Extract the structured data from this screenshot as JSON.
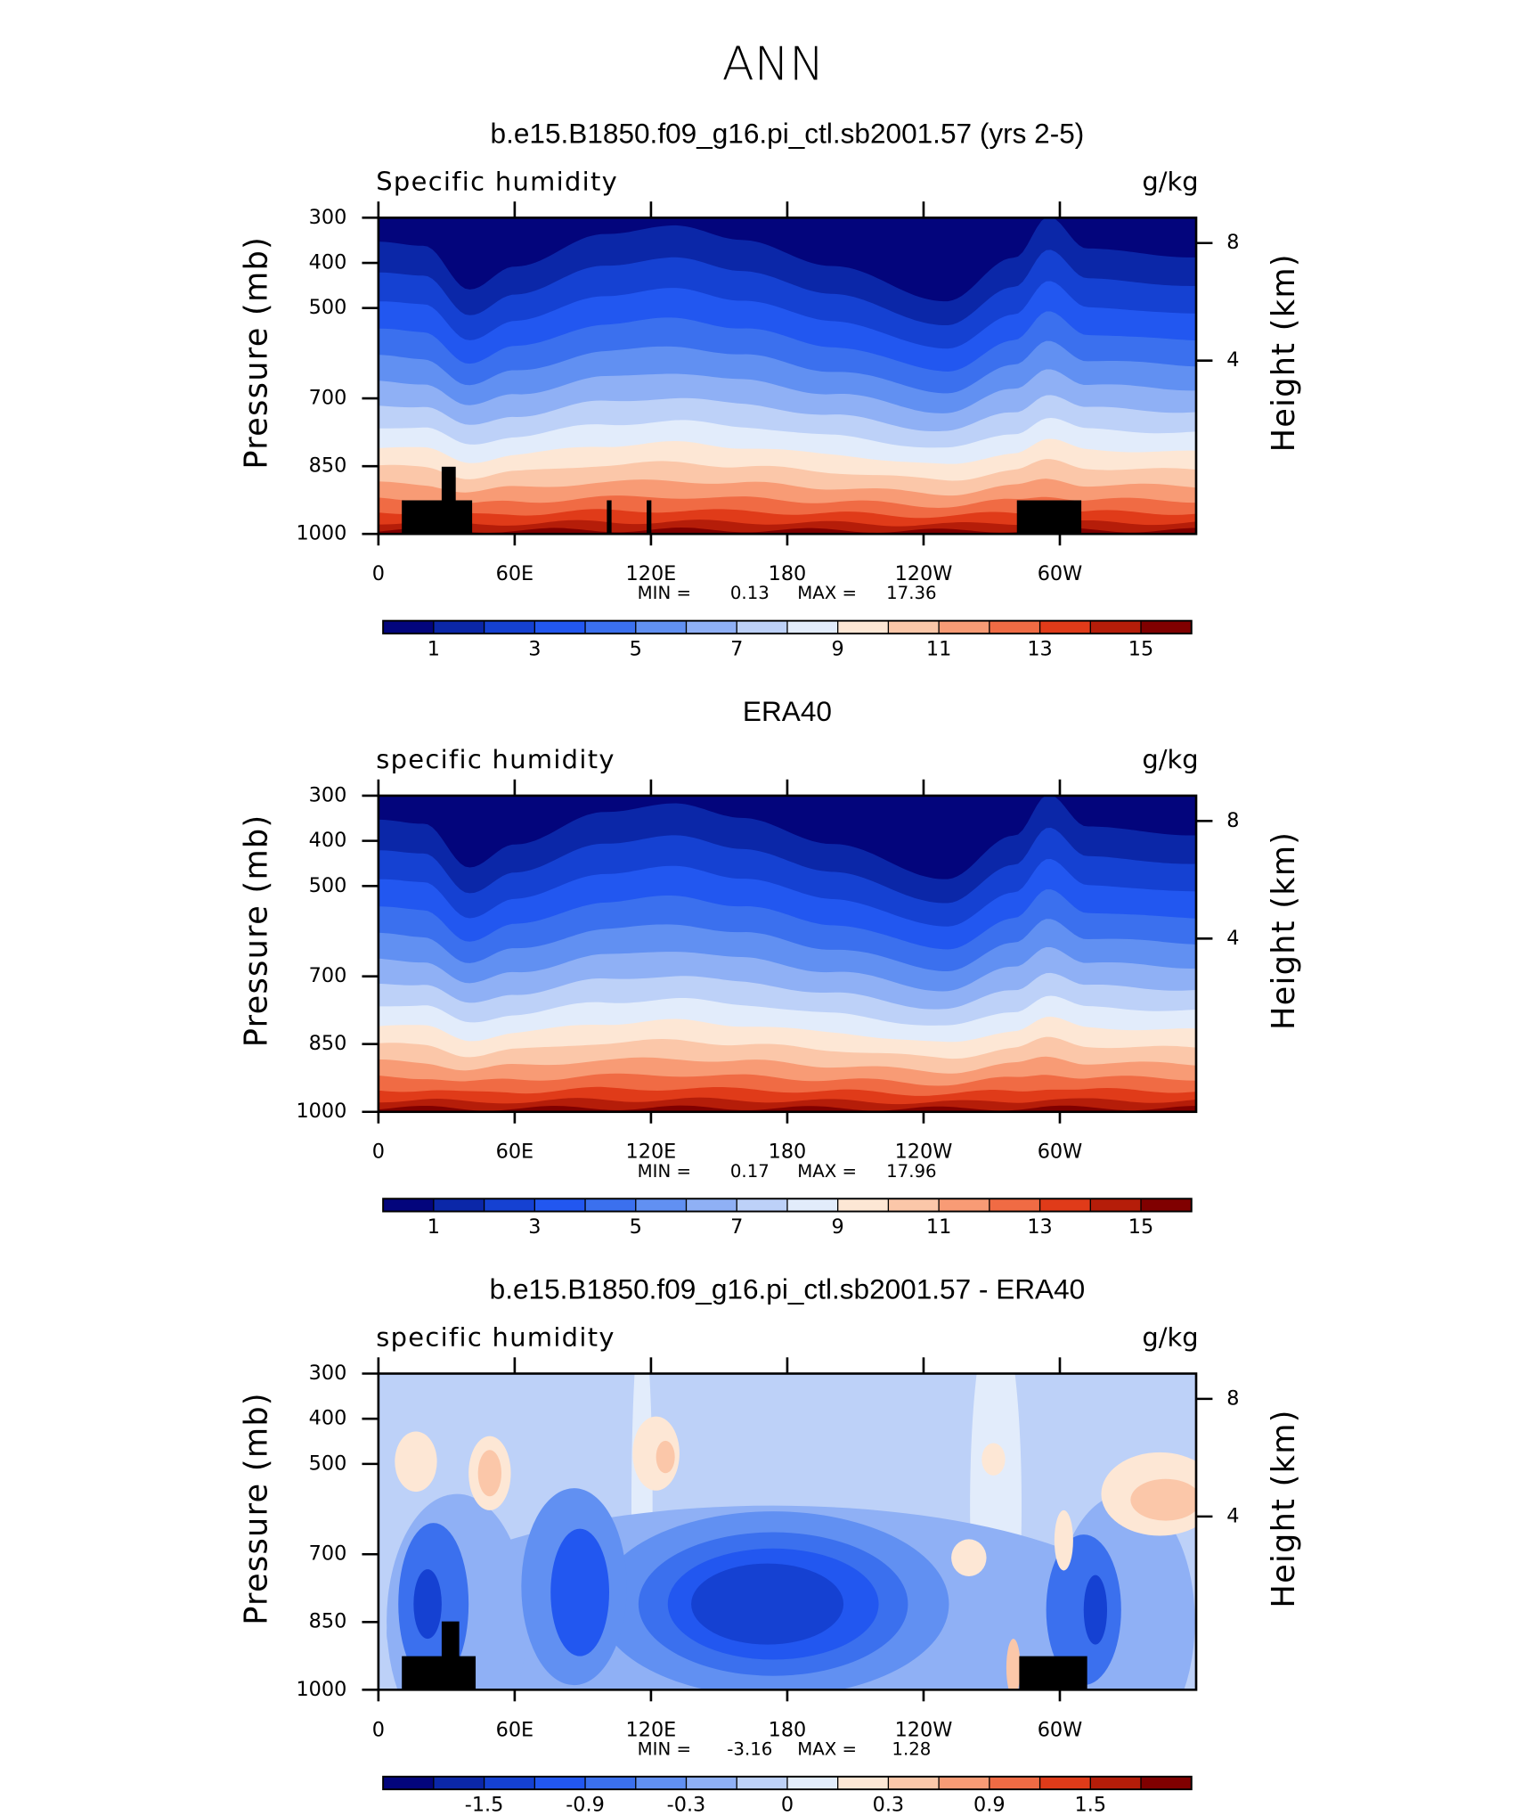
{
  "title": "ANN",
  "chart_data": [
    {
      "type": "contour",
      "title": "b.e15.B1850.f09_g16.pi_ctl.sb2001.57 (yrs 2-5)",
      "variable": "Specific humidity",
      "units": "g/kg",
      "ylabel": "Pressure (mb)",
      "y2label": "Height (km)",
      "xlim": [
        0,
        360
      ],
      "xticks": [
        0,
        {
          "value": 60,
          "label": "60E"
        },
        {
          "value": 120,
          "label": "120E"
        },
        180,
        {
          "value": 240,
          "label": "120W"
        },
        {
          "value": 300,
          "label": "60W"
        }
      ],
      "ylim": [
        1000,
        300
      ],
      "yticks": [
        300,
        400,
        500,
        700,
        850,
        1000
      ],
      "y2scale": "standard-atmosphere",
      "y2ticks": [
        4,
        8
      ],
      "min_label": "MIN =",
      "min": 0.13,
      "max_label": "MAX =",
      "max": 17.36,
      "levels": [
        1,
        2,
        3,
        4,
        5,
        6,
        7,
        8,
        9,
        10,
        11,
        12,
        13,
        14,
        15
      ],
      "colorbar_ticks": [
        1,
        3,
        5,
        7,
        9,
        11,
        13,
        15
      ],
      "colors": [
        "#03057c",
        "#0b27a8",
        "#1541d2",
        "#2257f0",
        "#3b70ee",
        "#6190f2",
        "#8fb0f5",
        "#bdd1f8",
        "#e2ecfb",
        "#fde7d5",
        "#fbc7a9",
        "#f89b75",
        "#f06b44",
        "#e03b19",
        "#b51d09",
        "#800000"
      ]
    },
    {
      "type": "contour",
      "title": "ERA40",
      "variable": "specific humidity",
      "units": "g/kg",
      "ylabel": "Pressure (mb)",
      "y2label": "Height (km)",
      "xlim": [
        0,
        360
      ],
      "xticks": [
        0,
        {
          "value": 60,
          "label": "60E"
        },
        {
          "value": 120,
          "label": "120E"
        },
        180,
        {
          "value": 240,
          "label": "120W"
        },
        {
          "value": 300,
          "label": "60W"
        }
      ],
      "ylim": [
        1000,
        300
      ],
      "yticks": [
        300,
        400,
        500,
        700,
        850,
        1000
      ],
      "y2scale": "standard-atmosphere",
      "y2ticks": [
        4,
        8
      ],
      "min_label": "MIN =",
      "min": 0.17,
      "max_label": "MAX =",
      "max": 17.96,
      "levels": [
        1,
        2,
        3,
        4,
        5,
        6,
        7,
        8,
        9,
        10,
        11,
        12,
        13,
        14,
        15
      ],
      "colorbar_ticks": [
        1,
        3,
        5,
        7,
        9,
        11,
        13,
        15
      ],
      "colors": [
        "#03057c",
        "#0b27a8",
        "#1541d2",
        "#2257f0",
        "#3b70ee",
        "#6190f2",
        "#8fb0f5",
        "#bdd1f8",
        "#e2ecfb",
        "#fde7d5",
        "#fbc7a9",
        "#f89b75",
        "#f06b44",
        "#e03b19",
        "#b51d09",
        "#800000"
      ]
    },
    {
      "type": "contour",
      "title": "b.e15.B1850.f09_g16.pi_ctl.sb2001.57 - ERA40",
      "variable": "specific humidity",
      "units": "g/kg",
      "ylabel": "Pressure (mb)",
      "y2label": "Height (km)",
      "xlim": [
        0,
        360
      ],
      "xticks": [
        0,
        {
          "value": 60,
          "label": "60E"
        },
        {
          "value": 120,
          "label": "120E"
        },
        180,
        {
          "value": 240,
          "label": "120W"
        },
        {
          "value": 300,
          "label": "60W"
        }
      ],
      "ylim": [
        1000,
        300
      ],
      "yticks": [
        300,
        400,
        500,
        700,
        850,
        1000
      ],
      "y2scale": "standard-atmosphere",
      "y2ticks": [
        4,
        8
      ],
      "min_label": "MIN =",
      "min": -3.16,
      "max_label": "MAX =",
      "max": 1.28,
      "levels": [
        -1.8,
        -1.5,
        -1.2,
        -0.9,
        -0.6,
        -0.3,
        -0.1,
        0,
        0.1,
        0.3,
        0.6,
        0.9,
        1.2,
        1.5,
        1.8
      ],
      "colorbar_ticks": [
        -1.5,
        -0.9,
        -0.3,
        0,
        0.3,
        0.9,
        1.5
      ],
      "colors": [
        "#03057c",
        "#0b27a8",
        "#1541d2",
        "#2257f0",
        "#3b70ee",
        "#6190f2",
        "#8fb0f5",
        "#bdd1f8",
        "#e2ecfb",
        "#fde7d5",
        "#fbc7a9",
        "#f89b75",
        "#f06b44",
        "#e03b19",
        "#b51d09",
        "#800000"
      ]
    }
  ]
}
